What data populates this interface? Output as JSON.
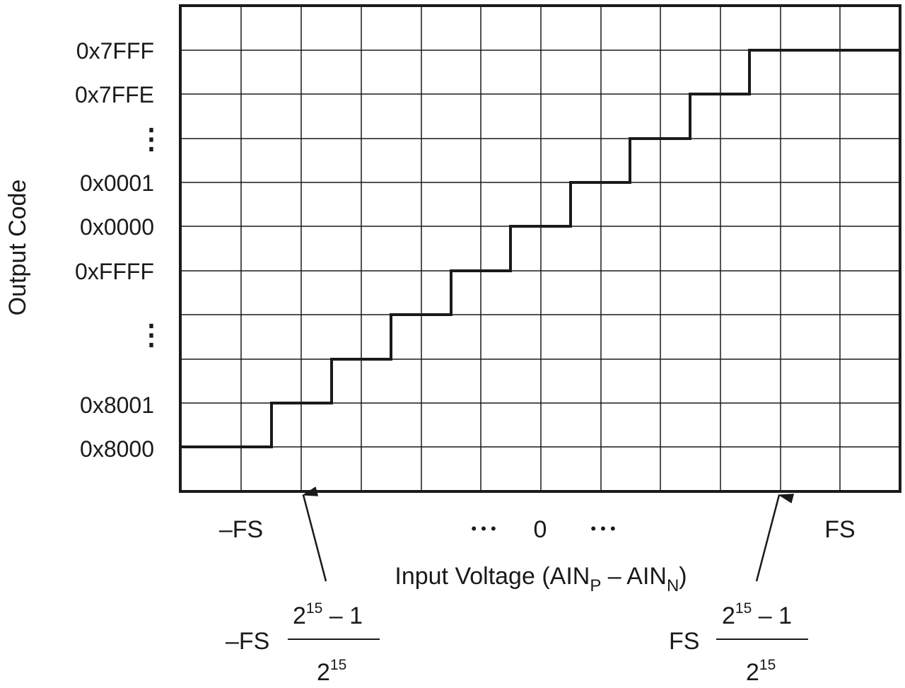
{
  "y_axis": {
    "label": "Output Code",
    "ticks": [
      "0x7FFF",
      "0x7FFE",
      "⋮",
      "0x0001",
      "0x0000",
      "0xFFFF",
      "⋮",
      "0x8001",
      "0x8000"
    ]
  },
  "x_axis": {
    "label_main": "Input Voltage (AIN",
    "label_sub_p": "P",
    "label_mid": " – AIN",
    "label_sub_n": "N",
    "label_close": ")",
    "tick_left": "–FS",
    "tick_center_dots_left": "• • •",
    "tick_center": "0",
    "tick_center_dots_right": "• • •",
    "tick_right": "FS"
  },
  "annotations": {
    "left": {
      "prefix": "–FS",
      "num_base": "2",
      "num_exp": "15",
      "num_rest": " – 1",
      "den_base": "2",
      "den_exp": "15"
    },
    "right": {
      "prefix": "FS",
      "num_base": "2",
      "num_exp": "15",
      "num_rest": " – 1",
      "den_base": "2",
      "den_exp": "15"
    }
  },
  "transfer": {
    "steps": 10,
    "codes_low_to_high": [
      "0x8000",
      "0x8001",
      "",
      "",
      "0xFFFF",
      "0x0000",
      "0x0001",
      "",
      "0x7FFE",
      "0x7FFF"
    ]
  },
  "colors": {
    "line": "#1a1a1a",
    "grid": "#1a1a1a",
    "background": "#ffffff"
  }
}
